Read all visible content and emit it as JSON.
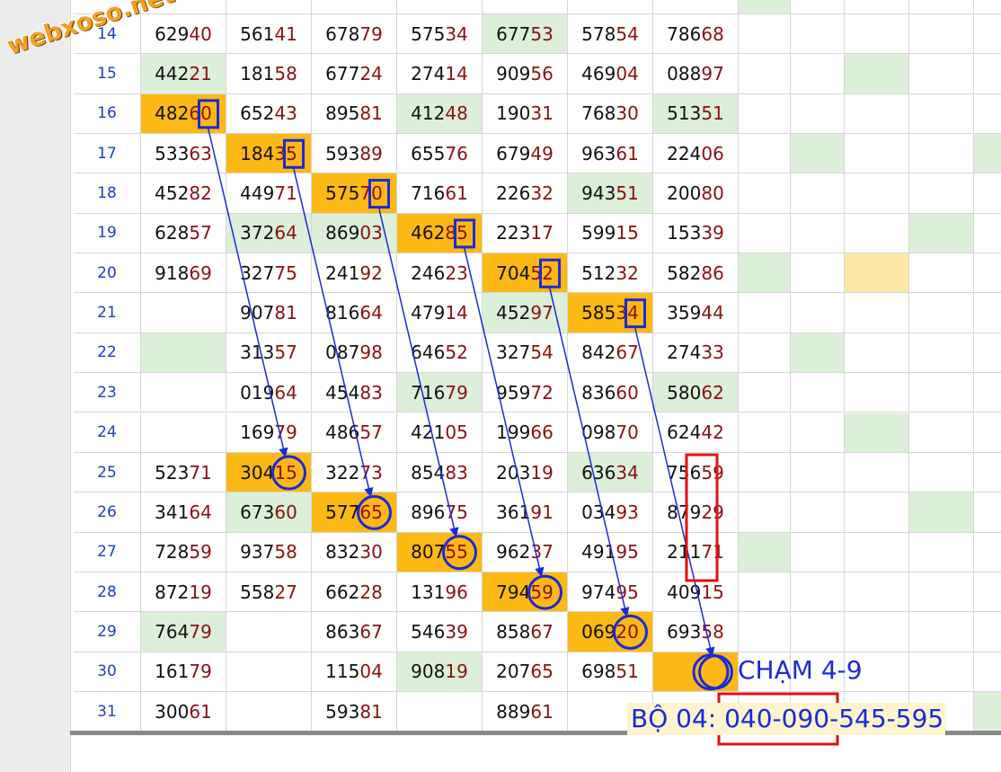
{
  "watermark": "webxoso.net",
  "rows": [
    {
      "label": "14",
      "cells": [
        "62940",
        "56141",
        "67879",
        "57534",
        "67753",
        "57854",
        "78668"
      ]
    },
    {
      "label": "15",
      "cells": [
        "44221",
        "18158",
        "67724",
        "27414",
        "90956",
        "46904",
        "08897"
      ]
    },
    {
      "label": "16",
      "cells": [
        "48260",
        "65243",
        "89581",
        "41248",
        "19031",
        "76830",
        "51351"
      ]
    },
    {
      "label": "17",
      "cells": [
        "53363",
        "18435",
        "59389",
        "65576",
        "67949",
        "96361",
        "22406"
      ]
    },
    {
      "label": "18",
      "cells": [
        "45282",
        "44971",
        "57570",
        "71661",
        "22632",
        "94351",
        "20080"
      ]
    },
    {
      "label": "19",
      "cells": [
        "62857",
        "37264",
        "86903",
        "46285",
        "22317",
        "59915",
        "15339"
      ]
    },
    {
      "label": "20",
      "cells": [
        "91869",
        "32775",
        "24192",
        "24623",
        "70452",
        "51232",
        "58286"
      ]
    },
    {
      "label": "21",
      "cells": [
        null,
        "90781",
        "81664",
        "47914",
        "45297",
        "58534",
        "35944"
      ]
    },
    {
      "label": "22",
      "cells": [
        null,
        "31357",
        "08798",
        "64652",
        "32754",
        "84267",
        "27433"
      ]
    },
    {
      "label": "23",
      "cells": [
        null,
        "01964",
        "45483",
        "71679",
        "95972",
        "83660",
        "58062"
      ]
    },
    {
      "label": "24",
      "cells": [
        null,
        "16979",
        "48657",
        "42105",
        "19966",
        "09870",
        "62442"
      ]
    },
    {
      "label": "25",
      "cells": [
        "52371",
        "30415",
        "32273",
        "85483",
        "20319",
        "63634",
        "75659"
      ]
    },
    {
      "label": "26",
      "cells": [
        "34164",
        "67360",
        "57765",
        "89675",
        "36191",
        "03493",
        "87929"
      ]
    },
    {
      "label": "27",
      "cells": [
        "72859",
        "93758",
        "83230",
        "80755",
        "96237",
        "49195",
        "21171"
      ]
    },
    {
      "label": "28",
      "cells": [
        "87219",
        "55827",
        "66228",
        "13196",
        "79459",
        "97495",
        "40915"
      ]
    },
    {
      "label": "29",
      "cells": [
        "76479",
        null,
        "86367",
        "54639",
        "85867",
        "06920",
        "69358"
      ]
    },
    {
      "label": "30",
      "cells": [
        "16179",
        null,
        "11504",
        "90819",
        "20765",
        "69851",
        null
      ]
    },
    {
      "label": "31",
      "cells": [
        "30061",
        null,
        "59381",
        null,
        "88961",
        null,
        null
      ]
    }
  ],
  "annotations": {
    "cham": "CHẠM 4-9",
    "bo": "BỘ 04: 040-090-545-595"
  }
}
